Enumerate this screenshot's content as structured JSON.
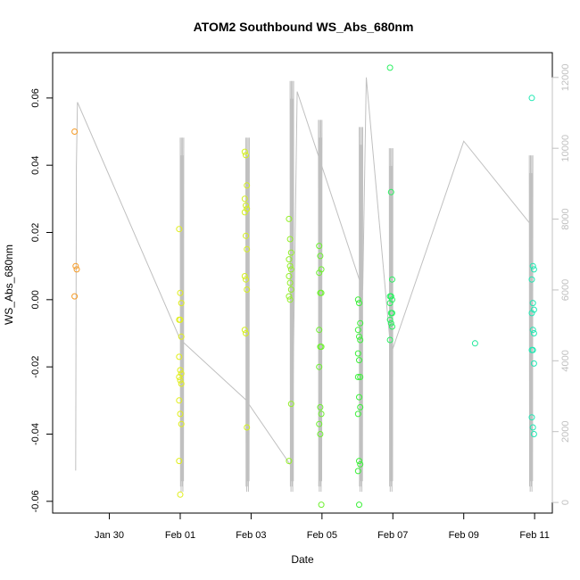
{
  "chart_data": {
    "type": "scatter",
    "title": "ATOM2 Southbound WS_Abs_680nm",
    "xlabel": "Date",
    "ylabel": "WS_Abs_680nm",
    "x_ticks": [
      "Jan 30",
      "Feb 01",
      "Feb 03",
      "Feb 05",
      "Feb 07",
      "Feb 09",
      "Feb 11"
    ],
    "x_tick_days": [
      30,
      32,
      34,
      36,
      38,
      40,
      42
    ],
    "xlim_days": [
      28.4,
      42.5
    ],
    "y_ticks": [
      "-0.06",
      "-0.04",
      "-0.02",
      "0.00",
      "0.02",
      "0.04",
      "0.06"
    ],
    "y_tick_values": [
      -0.06,
      -0.04,
      -0.02,
      0.0,
      0.02,
      0.04,
      0.06
    ],
    "ylim": [
      -0.0635,
      0.0735
    ],
    "y2_ticks": [
      "0",
      "2000",
      "4000",
      "6000",
      "8000",
      "10000",
      "12000"
    ],
    "y2_tick_values": [
      0,
      2000,
      4000,
      6000,
      8000,
      10000,
      12000
    ],
    "y2lim": [
      -300,
      12700
    ],
    "secondary_line_color": "#c0c0c0",
    "point_groups": [
      {
        "day": 29.05,
        "color": "#f59b27",
        "values": [
          0.05,
          0.01,
          0.009,
          0.001
        ]
      },
      {
        "day": 32.0,
        "color": "#e0ee1a",
        "values": [
          0.021,
          0.002,
          -0.001,
          -0.006,
          -0.006,
          -0.011,
          -0.017,
          -0.021,
          -0.022,
          -0.023,
          -0.024,
          -0.025,
          -0.03,
          -0.034,
          -0.037,
          -0.048,
          -0.058
        ]
      },
      {
        "day": 33.85,
        "color": "#d4f01e",
        "values": [
          0.044,
          0.043,
          0.034,
          0.03,
          0.028,
          0.027,
          0.026,
          0.019,
          0.015,
          0.007,
          0.006,
          0.003,
          -0.009,
          -0.01,
          -0.038
        ]
      },
      {
        "day": 35.1,
        "color": "#94f02a",
        "values": [
          0.024,
          0.018,
          0.014,
          0.012,
          0.01,
          0.009,
          0.007,
          0.005,
          0.003,
          0.001,
          0.0,
          -0.031,
          -0.048
        ]
      },
      {
        "day": 35.95,
        "color": "#6ef030",
        "values": [
          0.016,
          0.013,
          0.009,
          0.008,
          0.002,
          0.002,
          -0.009,
          -0.014,
          -0.014,
          -0.02,
          -0.032,
          -0.034,
          -0.037,
          -0.04,
          -0.061
        ]
      },
      {
        "day": 37.05,
        "color": "#3cf03a",
        "values": [
          0.0,
          -0.001,
          -0.007,
          -0.009,
          -0.011,
          -0.012,
          -0.016,
          -0.018,
          -0.023,
          -0.023,
          -0.029,
          -0.032,
          -0.034,
          -0.048,
          -0.049,
          -0.051,
          -0.061
        ]
      },
      {
        "day": 37.95,
        "color": "#2af060",
        "values": [
          0.069,
          0.032,
          0.006,
          0.001,
          0.001,
          0.0,
          -0.001,
          -0.004,
          -0.004,
          -0.006,
          -0.007,
          -0.008,
          -0.012
        ]
      },
      {
        "day": 40.35,
        "color": "#20e89a",
        "values": [
          -0.013
        ]
      },
      {
        "day": 41.95,
        "color": "#1ee8b2",
        "values": [
          0.06,
          0.01,
          0.009,
          0.006,
          -0.001,
          -0.003,
          -0.004,
          -0.009,
          -0.01,
          -0.015,
          -0.015,
          -0.019,
          -0.035,
          -0.038,
          -0.04
        ]
      }
    ],
    "secondary_series": [
      {
        "day": 29.05,
        "value": 900
      },
      {
        "day": 29.07,
        "value": 9500
      },
      {
        "day": 29.1,
        "value": 11300
      },
      {
        "day": 32.0,
        "value": 4600
      },
      {
        "day": 33.85,
        "value": 2900
      },
      {
        "day": 35.15,
        "value": 1000
      },
      {
        "day": 35.3,
        "value": 11600
      },
      {
        "day": 37.15,
        "value": 6000
      },
      {
        "day": 37.25,
        "value": 12000
      },
      {
        "day": 37.95,
        "value": 4200
      },
      {
        "day": 40.0,
        "value": 10200
      },
      {
        "day": 41.85,
        "value": 7900
      }
    ],
    "secondary_dense_blocks": [
      {
        "start": 32.0,
        "end": 32.1,
        "max": 10300,
        "min": 300
      },
      {
        "start": 33.85,
        "end": 33.95,
        "max": 10300,
        "min": 300
      },
      {
        "start": 35.1,
        "end": 35.2,
        "max": 11900,
        "min": 300
      },
      {
        "start": 35.9,
        "end": 36.0,
        "max": 10800,
        "min": 300
      },
      {
        "start": 37.05,
        "end": 37.15,
        "max": 10600,
        "min": 300
      },
      {
        "start": 37.9,
        "end": 38.0,
        "max": 10000,
        "min": 300
      },
      {
        "start": 41.85,
        "end": 41.95,
        "max": 9800,
        "min": 300
      }
    ]
  }
}
